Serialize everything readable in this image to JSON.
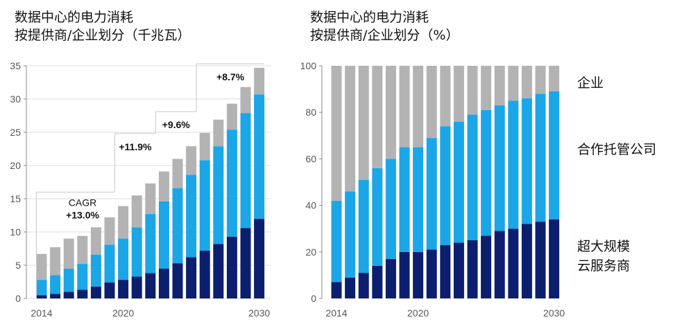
{
  "colors": {
    "hyperscale": "#0c1f6e",
    "colocation": "#1ba6e8",
    "enterprise": "#b3b3b3"
  },
  "titles": {
    "left": {
      "line1": "数据中心的电力消耗",
      "line2": "按提供商/企业划分（千兆瓦）"
    },
    "right": {
      "line1": "数据中心的电力消耗",
      "line2": "按提供商/企业划分（%）"
    }
  },
  "legend": {
    "enterprise": "企业",
    "colocation": "合作托管公司",
    "hyperscale_line1": "超大规模",
    "hyperscale_line2": "云服务商"
  },
  "chart_data": [
    {
      "type": "bar",
      "stacked": true,
      "title": "数据中心的电力消耗 按提供商/企业划分（千兆瓦）",
      "categories": [
        "2014",
        "2015",
        "2016",
        "2017",
        "2018",
        "2019",
        "2020",
        "2021",
        "2022",
        "2023",
        "2024",
        "2025",
        "2026",
        "2027",
        "2028",
        "2029",
        "2030"
      ],
      "x_tick_labels": [
        "2014",
        "2020",
        "2030"
      ],
      "ylim": [
        0,
        35
      ],
      "y_ticks": [
        0,
        5,
        10,
        15,
        20,
        25,
        30,
        35
      ],
      "series": [
        {
          "name": "超大规模云服务商",
          "values": [
            0.5,
            0.7,
            1.0,
            1.3,
            1.8,
            2.4,
            2.8,
            3.3,
            3.8,
            4.5,
            5.3,
            6.2,
            7.2,
            8.2,
            9.3,
            10.6,
            12.0
          ]
        },
        {
          "name": "合作托管公司",
          "values": [
            2.3,
            2.8,
            3.5,
            3.9,
            4.8,
            5.7,
            6.2,
            7.4,
            8.9,
            10.1,
            11.3,
            12.4,
            13.6,
            14.7,
            16.1,
            17.3,
            18.7
          ]
        },
        {
          "name": "企业",
          "values": [
            3.9,
            4.2,
            4.5,
            4.2,
            4.1,
            4.1,
            4.9,
            4.8,
            4.6,
            4.5,
            4.4,
            4.3,
            4.1,
            4.0,
            3.9,
            3.9,
            4.0
          ]
        }
      ],
      "annotations": [
        {
          "label_line1": "CAGR",
          "label_line2": "+13.0%",
          "from": "2014",
          "to": "2019",
          "bracket_value": 16
        },
        {
          "label_line1": "",
          "label_line2": "+11.9%",
          "from": "2019",
          "to": "2022",
          "bracket_value": 24.8
        },
        {
          "label_line1": "",
          "label_line2": "+9.6%",
          "from": "2022",
          "to": "2025",
          "bracket_value": 28.1
        },
        {
          "label_line1": "",
          "label_line2": "+8.7%",
          "from": "2025",
          "to": "2030",
          "bracket_value": 35.3
        }
      ]
    },
    {
      "type": "bar",
      "stacked": true,
      "title": "数据中心的电力消耗 按提供商/企业划分（%）",
      "categories": [
        "2014",
        "2015",
        "2016",
        "2017",
        "2018",
        "2019",
        "2020",
        "2021",
        "2022",
        "2023",
        "2024",
        "2025",
        "2026",
        "2027",
        "2028",
        "2029",
        "2030"
      ],
      "x_tick_labels": [
        "2014",
        "2020",
        "2030"
      ],
      "ylim": [
        0,
        100
      ],
      "y_ticks": [
        0,
        20,
        40,
        60,
        80,
        100
      ],
      "series": [
        {
          "name": "超大规模云服务商",
          "values": [
            7,
            9,
            11,
            14,
            17,
            20,
            20,
            21,
            23,
            24,
            25,
            27,
            29,
            30,
            32,
            33,
            34
          ]
        },
        {
          "name": "合作托管公司",
          "values": [
            35,
            37,
            40,
            42,
            43,
            45,
            45,
            48,
            51,
            52,
            54,
            54,
            54,
            55,
            54,
            55,
            55
          ]
        },
        {
          "name": "企业",
          "values": [
            58,
            54,
            49,
            44,
            40,
            35,
            35,
            31,
            26,
            24,
            21,
            19,
            17,
            15,
            14,
            12,
            11
          ]
        }
      ]
    }
  ]
}
